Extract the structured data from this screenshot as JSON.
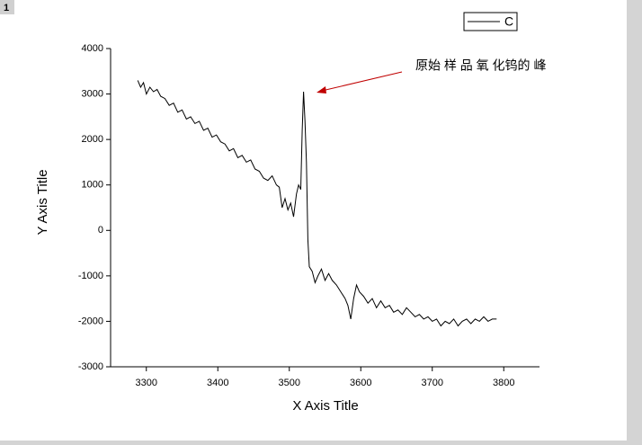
{
  "panel_label": "1",
  "chart_data": {
    "type": "line",
    "x_label": "X Axis Title",
    "y_label": "Y Axis Title",
    "annotation": "原始 样 品 氧 化钨的 峰",
    "xlim": [
      3250,
      3850
    ],
    "xticks": [
      3300,
      3400,
      3500,
      3600,
      3700,
      3800
    ],
    "ylim": [
      -3000,
      4000
    ],
    "yticks": [
      -3000,
      -2000,
      -1000,
      0,
      1000,
      2000,
      3000,
      4000
    ],
    "legend": "top-right",
    "series": [
      {
        "name": "C",
        "color": "#000000",
        "x": [
          3288,
          3292,
          3296,
          3300,
          3305,
          3310,
          3315,
          3320,
          3326,
          3332,
          3338,
          3344,
          3350,
          3356,
          3362,
          3368,
          3374,
          3380,
          3386,
          3392,
          3398,
          3404,
          3410,
          3416,
          3422,
          3428,
          3434,
          3440,
          3446,
          3452,
          3458,
          3464,
          3470,
          3476,
          3482,
          3486,
          3490,
          3494,
          3498,
          3502,
          3506,
          3510,
          3513,
          3516,
          3518,
          3520,
          3522,
          3524,
          3526,
          3528,
          3532,
          3536,
          3540,
          3545,
          3550,
          3555,
          3560,
          3566,
          3572,
          3578,
          3582,
          3586,
          3590,
          3594,
          3598,
          3604,
          3610,
          3616,
          3622,
          3628,
          3634,
          3640,
          3646,
          3652,
          3658,
          3664,
          3670,
          3676,
          3682,
          3688,
          3694,
          3700,
          3706,
          3712,
          3718,
          3724,
          3730,
          3736,
          3742,
          3748,
          3754,
          3760,
          3766,
          3772,
          3778,
          3784,
          3790
        ],
        "values": [
          3300,
          3150,
          3250,
          3000,
          3150,
          3050,
          3100,
          2950,
          2900,
          2750,
          2800,
          2600,
          2650,
          2450,
          2500,
          2350,
          2400,
          2200,
          2250,
          2050,
          2100,
          1950,
          1900,
          1750,
          1800,
          1600,
          1650,
          1500,
          1550,
          1350,
          1300,
          1150,
          1100,
          1200,
          1000,
          950,
          500,
          700,
          450,
          600,
          300,
          800,
          1000,
          900,
          2200,
          3050,
          2400,
          1500,
          -200,
          -800,
          -900,
          -1150,
          -1000,
          -850,
          -1100,
          -950,
          -1100,
          -1200,
          -1350,
          -1500,
          -1650,
          -1950,
          -1500,
          -1200,
          -1350,
          -1450,
          -1600,
          -1500,
          -1700,
          -1550,
          -1700,
          -1650,
          -1800,
          -1750,
          -1850,
          -1700,
          -1800,
          -1900,
          -1850,
          -1950,
          -1900,
          -2000,
          -1950,
          -2100,
          -2000,
          -2050,
          -1950,
          -2100,
          -2000,
          -1950,
          -2050,
          -1950,
          -2000,
          -1900,
          -2000,
          -1950,
          -1950
        ]
      }
    ]
  }
}
